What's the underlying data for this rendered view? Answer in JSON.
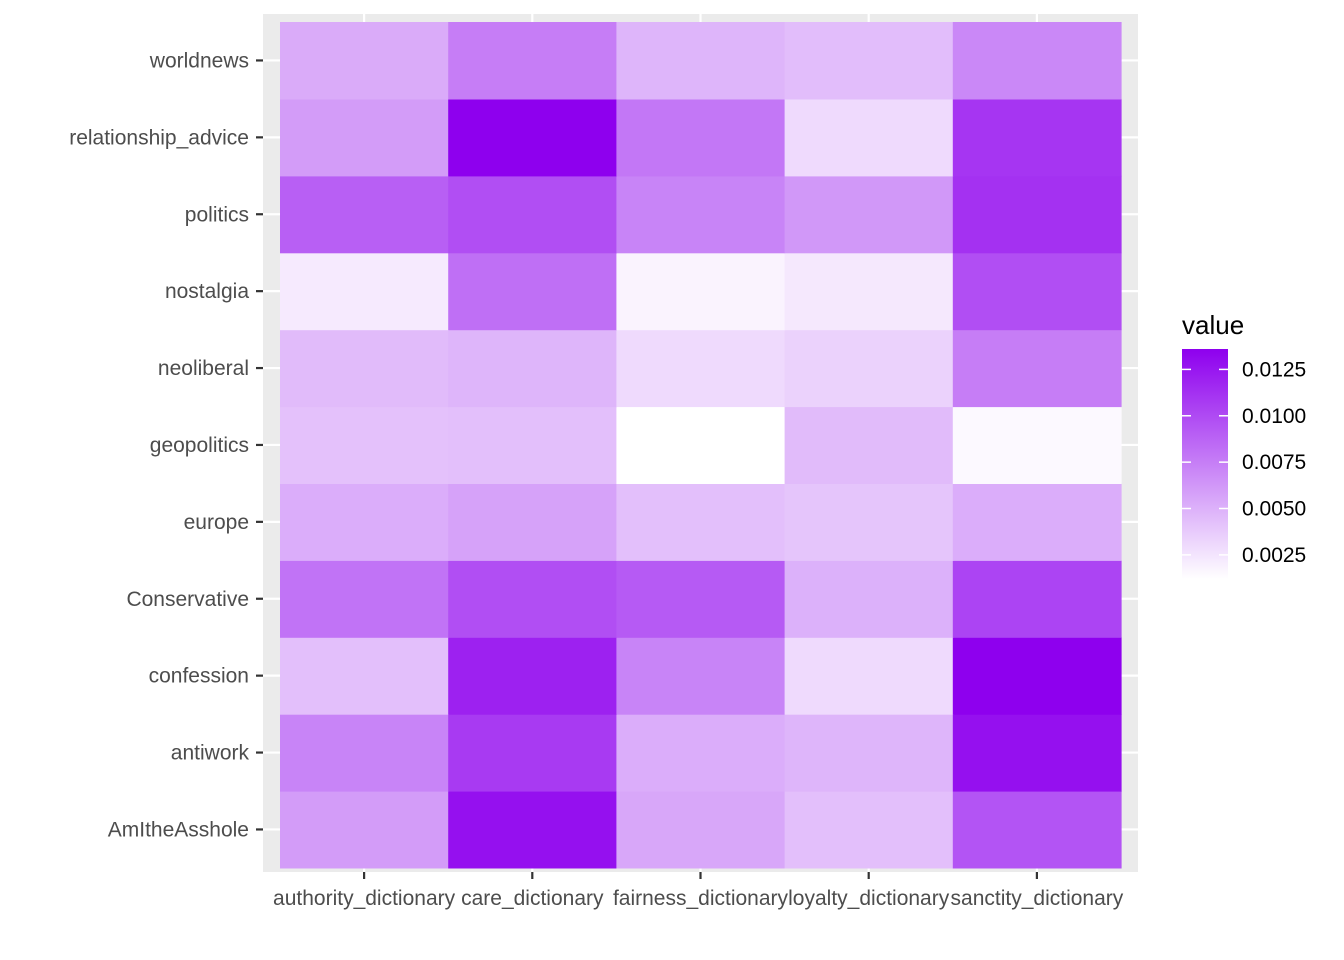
{
  "chart_data": {
    "type": "heatmap",
    "x_categories": [
      "authority_dictionary",
      "care_dictionary",
      "fairness_dictionary",
      "loyalty_dictionary",
      "sanctity_dictionary"
    ],
    "y_categories": [
      "AmItheAsshole",
      "antiwork",
      "confession",
      "Conservative",
      "europe",
      "geopolitics",
      "neoliberal",
      "nostalgia",
      "politics",
      "relationship_advice",
      "worldnews"
    ],
    "values": [
      [
        0.006,
        0.0128,
        0.0055,
        0.0043,
        0.0095
      ],
      [
        0.0072,
        0.0108,
        0.0052,
        0.0048,
        0.0128
      ],
      [
        0.0043,
        0.012,
        0.0072,
        0.003,
        0.0136
      ],
      [
        0.008,
        0.0098,
        0.0092,
        0.005,
        0.0103
      ],
      [
        0.0052,
        0.0057,
        0.0043,
        0.004,
        0.0052
      ],
      [
        0.0042,
        0.0043,
        0.0012,
        0.0045,
        0.0015
      ],
      [
        0.0045,
        0.0048,
        0.003,
        0.0034,
        0.0075
      ],
      [
        0.0022,
        0.0082,
        0.0018,
        0.0023,
        0.0098
      ],
      [
        0.009,
        0.0098,
        0.0072,
        0.0062,
        0.0112
      ],
      [
        0.006,
        0.0136,
        0.0078,
        0.003,
        0.011
      ],
      [
        0.0053,
        0.0075,
        0.0048,
        0.0044,
        0.007
      ]
    ],
    "legend": {
      "title": "value",
      "ticks": [
        0.0125,
        0.01,
        0.0075,
        0.005,
        0.0025
      ],
      "tick_labels": [
        "0.0125",
        "0.0100",
        "0.0075",
        "0.0050",
        "0.0025"
      ],
      "range": [
        0.0012,
        0.0136
      ],
      "placement": "right"
    },
    "colors": {
      "low": "#ffffff",
      "high": "#8e00ee",
      "panel": "#ebebeb",
      "grid": "#ffffff"
    },
    "xlabel": "",
    "ylabel": "",
    "grid": true
  }
}
